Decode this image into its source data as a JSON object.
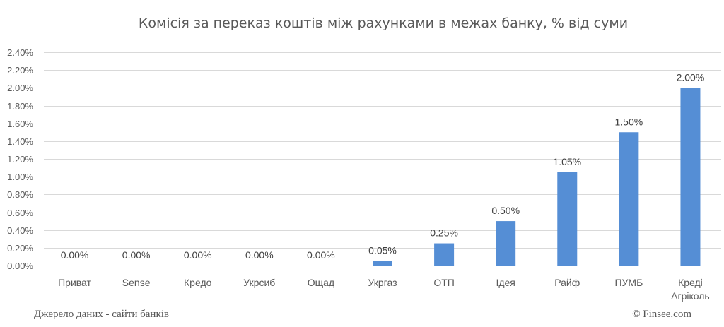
{
  "chart_data": {
    "type": "bar",
    "title": "Комісія за переказ коштів між рахунками в межах банку, % від суми",
    "categories": [
      "Приват",
      "Sense",
      "Кредо",
      "Укрсиб",
      "Ощад",
      "Укргаз",
      "ОТП",
      "Ідея",
      "Райф",
      "ПУМБ",
      "Креді Агріколь"
    ],
    "values": [
      0.0,
      0.0,
      0.0,
      0.0,
      0.0,
      0.05,
      0.25,
      0.5,
      1.05,
      1.5,
      2.0
    ],
    "data_labels": [
      "0.00%",
      "0.00%",
      "0.00%",
      "0.00%",
      "0.00%",
      "0.05%",
      "0.25%",
      "0.50%",
      "1.05%",
      "1.50%",
      "2.00%"
    ],
    "y_ticks": [
      0.0,
      0.2,
      0.4,
      0.6,
      0.8,
      1.0,
      1.2,
      1.4,
      1.6,
      1.8,
      2.0,
      2.2,
      2.4
    ],
    "y_tick_labels": [
      "0.00%",
      "0.20%",
      "0.40%",
      "0.60%",
      "0.80%",
      "1.00%",
      "1.20%",
      "1.40%",
      "1.60%",
      "1.80%",
      "2.00%",
      "2.20%",
      "2.40%"
    ],
    "ylim": [
      0,
      2.4
    ],
    "grid": true,
    "bar_color": "#558ed5"
  },
  "footer": {
    "source": "Джерело даних - сайти банків",
    "copyright": "© Finsee.com"
  }
}
